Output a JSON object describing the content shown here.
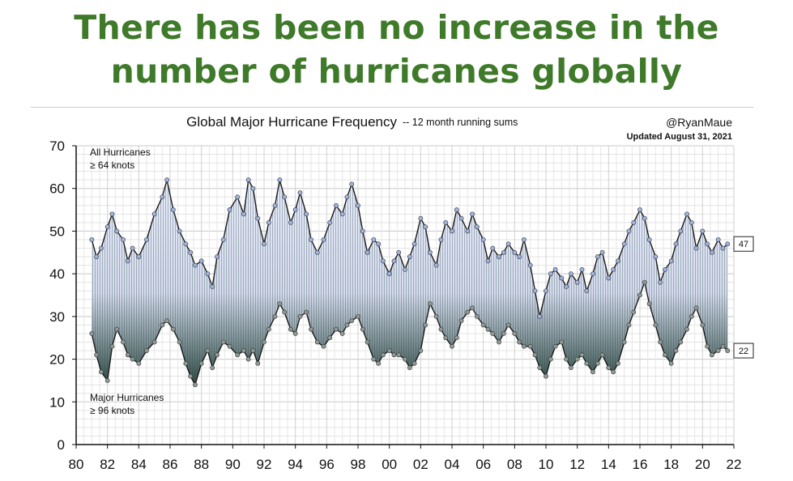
{
  "headline": {
    "line1": "There has been no increase in the",
    "line2": "number of hurricanes globally"
  },
  "colors": {
    "headline": "#3f7a2a",
    "all_line": "#1a1a1a",
    "all_marker": "#9fb3de",
    "major_marker": "#8f9a95",
    "fill_top": "#e6ebfb",
    "fill_bottom": "#2e4a44"
  },
  "chart_data": {
    "type": "line",
    "title": "Global Major Hurricane Frequency",
    "subtitle": "-- 12 month running sums",
    "credit": "@RyanMaue",
    "updated": "Updated August 31, 2021",
    "xlabel": "",
    "ylabel": "",
    "xlim": [
      1980,
      2022
    ],
    "ylim": [
      0,
      70
    ],
    "x_ticks": [
      1980,
      1982,
      1984,
      1986,
      1988,
      1990,
      1992,
      1994,
      1996,
      1998,
      2000,
      2002,
      2004,
      2006,
      2008,
      2010,
      2012,
      2014,
      2016,
      2018,
      2020,
      2022
    ],
    "x_tick_labels": [
      "80",
      "82",
      "84",
      "86",
      "88",
      "90",
      "92",
      "94",
      "96",
      "98",
      "00",
      "02",
      "04",
      "06",
      "08",
      "10",
      "12",
      "14",
      "16",
      "18",
      "20",
      "22"
    ],
    "y_ticks": [
      0,
      10,
      20,
      30,
      40,
      50,
      60,
      70
    ],
    "y_tick_labels": [
      "0",
      "10",
      "20",
      "30",
      "40",
      "50",
      "60",
      "70"
    ],
    "grid": true,
    "annotations": {
      "all_label1": "All Hurricanes",
      "all_label2": "≥ 64 knots",
      "major_label1": "Major Hurricanes",
      "major_label2": "≥ 96 knots",
      "last_all": "47",
      "last_major": "22"
    },
    "series": [
      {
        "name": "All Hurricanes (≥ 64 knots)",
        "x": [
          1981.0,
          1981.3,
          1981.6,
          1982.0,
          1982.3,
          1982.6,
          1983.0,
          1983.3,
          1983.6,
          1984.0,
          1984.5,
          1985.0,
          1985.5,
          1985.8,
          1986.2,
          1986.6,
          1987.0,
          1987.3,
          1987.6,
          1988.0,
          1988.4,
          1988.7,
          1989.0,
          1989.4,
          1989.8,
          1990.3,
          1990.7,
          1991.0,
          1991.3,
          1991.6,
          1992.0,
          1992.3,
          1992.7,
          1993.0,
          1993.3,
          1993.7,
          1994.0,
          1994.3,
          1994.7,
          1995.0,
          1995.4,
          1995.8,
          1996.2,
          1996.6,
          1997.0,
          1997.3,
          1997.6,
          1998.0,
          1998.3,
          1998.6,
          1999.0,
          1999.3,
          1999.6,
          2000.0,
          2000.3,
          2000.6,
          2001.0,
          2001.3,
          2001.6,
          2002.0,
          2002.3,
          2002.6,
          2003.0,
          2003.3,
          2003.6,
          2004.0,
          2004.3,
          2004.6,
          2005.0,
          2005.3,
          2005.6,
          2006.0,
          2006.3,
          2006.6,
          2007.0,
          2007.3,
          2007.6,
          2008.0,
          2008.3,
          2008.6,
          2009.0,
          2009.3,
          2009.6,
          2010.0,
          2010.3,
          2010.6,
          2011.0,
          2011.3,
          2011.6,
          2012.0,
          2012.3,
          2012.6,
          2013.0,
          2013.3,
          2013.6,
          2014.0,
          2014.3,
          2014.6,
          2015.0,
          2015.3,
          2015.6,
          2016.0,
          2016.3,
          2016.6,
          2017.0,
          2017.3,
          2017.6,
          2018.0,
          2018.3,
          2018.6,
          2019.0,
          2019.3,
          2019.6,
          2020.0,
          2020.3,
          2020.6,
          2021.0,
          2021.3,
          2021.6
        ],
        "values": [
          48,
          44,
          46,
          51,
          54,
          50,
          48,
          43,
          46,
          44,
          48,
          54,
          58,
          62,
          55,
          50,
          47,
          45,
          42,
          43,
          40,
          37,
          44,
          48,
          55,
          58,
          54,
          62,
          60,
          53,
          47,
          52,
          56,
          62,
          58,
          52,
          55,
          59,
          54,
          48,
          45,
          48,
          52,
          56,
          54,
          58,
          61,
          56,
          50,
          45,
          48,
          47,
          43,
          40,
          43,
          45,
          41,
          44,
          47,
          53,
          51,
          45,
          42,
          48,
          52,
          50,
          55,
          53,
          50,
          54,
          51,
          48,
          43,
          46,
          44,
          45,
          47,
          45,
          44,
          48,
          42,
          36,
          30,
          36,
          40,
          41,
          39,
          37,
          40,
          38,
          41,
          36,
          40,
          44,
          45,
          39,
          41,
          43,
          47,
          50,
          52,
          55,
          53,
          48,
          44,
          38,
          41,
          43,
          47,
          50,
          54,
          52,
          46,
          50,
          47,
          45,
          48,
          46,
          47
        ]
      },
      {
        "name": "Major Hurricanes (≥ 96 knots)",
        "x": [
          1981.0,
          1981.3,
          1981.6,
          1982.0,
          1982.3,
          1982.6,
          1983.0,
          1983.3,
          1983.6,
          1984.0,
          1984.5,
          1985.0,
          1985.5,
          1985.8,
          1986.2,
          1986.6,
          1987.0,
          1987.3,
          1987.6,
          1988.0,
          1988.4,
          1988.7,
          1989.0,
          1989.4,
          1989.8,
          1990.3,
          1990.7,
          1991.0,
          1991.3,
          1991.6,
          1992.0,
          1992.3,
          1992.7,
          1993.0,
          1993.3,
          1993.7,
          1994.0,
          1994.3,
          1994.7,
          1995.0,
          1995.4,
          1995.8,
          1996.2,
          1996.6,
          1997.0,
          1997.3,
          1997.6,
          1998.0,
          1998.3,
          1998.6,
          1999.0,
          1999.3,
          1999.6,
          2000.0,
          2000.3,
          2000.6,
          2001.0,
          2001.3,
          2001.6,
          2002.0,
          2002.3,
          2002.6,
          2003.0,
          2003.3,
          2003.6,
          2004.0,
          2004.3,
          2004.6,
          2005.0,
          2005.3,
          2005.6,
          2006.0,
          2006.3,
          2006.6,
          2007.0,
          2007.3,
          2007.6,
          2008.0,
          2008.3,
          2008.6,
          2009.0,
          2009.3,
          2009.6,
          2010.0,
          2010.3,
          2010.6,
          2011.0,
          2011.3,
          2011.6,
          2012.0,
          2012.3,
          2012.6,
          2013.0,
          2013.3,
          2013.6,
          2014.0,
          2014.3,
          2014.6,
          2015.0,
          2015.3,
          2015.6,
          2016.0,
          2016.3,
          2016.6,
          2017.0,
          2017.3,
          2017.6,
          2018.0,
          2018.3,
          2018.6,
          2019.0,
          2019.3,
          2019.6,
          2020.0,
          2020.3,
          2020.6,
          2021.0,
          2021.3,
          2021.6
        ],
        "values": [
          26,
          21,
          17,
          15,
          23,
          27,
          24,
          21,
          20,
          19,
          22,
          24,
          28,
          29,
          27,
          24,
          19,
          16,
          14,
          19,
          22,
          18,
          21,
          24,
          23,
          21,
          22,
          20,
          22,
          19,
          24,
          27,
          30,
          33,
          31,
          27,
          26,
          30,
          31,
          27,
          24,
          23,
          25,
          27,
          26,
          28,
          29,
          30,
          27,
          24,
          20,
          19,
          21,
          22,
          21,
          21,
          20,
          18,
          19,
          22,
          28,
          33,
          30,
          27,
          25,
          23,
          25,
          29,
          31,
          32,
          30,
          28,
          27,
          26,
          24,
          26,
          28,
          26,
          24,
          23,
          23,
          21,
          18,
          16,
          20,
          23,
          24,
          20,
          18,
          20,
          21,
          19,
          17,
          19,
          21,
          18,
          17,
          19,
          24,
          28,
          31,
          35,
          38,
          33,
          28,
          24,
          21,
          19,
          22,
          24,
          27,
          30,
          32,
          28,
          23,
          21,
          22,
          23,
          22
        ]
      }
    ]
  }
}
